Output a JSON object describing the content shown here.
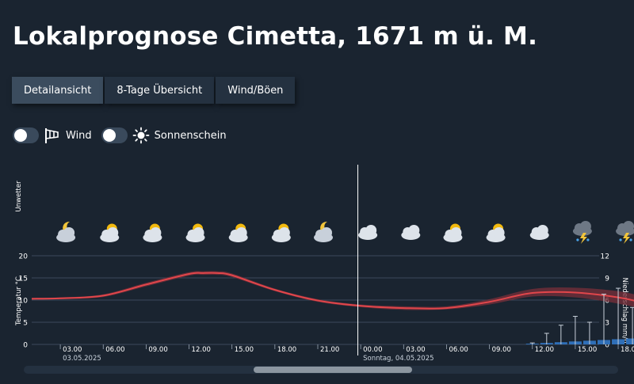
{
  "page": {
    "title": "Lokalprognose Cimetta, 1671 m ü. M."
  },
  "tabs": [
    {
      "label": "Detailansicht",
      "active": true
    },
    {
      "label": "8-Tage Übersicht",
      "active": false
    },
    {
      "label": "Wind/Böen",
      "active": false
    }
  ],
  "toggles": [
    {
      "label": "Wind",
      "icon": "windsock-icon",
      "on": false
    },
    {
      "label": "Sonnenschein",
      "icon": "sun-icon",
      "on": false
    }
  ],
  "colors": {
    "background": "#1a2430",
    "temperature_line": "#e0464b",
    "temperature_band": "#7a2f3a",
    "precip_bar": "#2f6fb8",
    "precip_whisker": "#c8d0da"
  },
  "chart_data": {
    "type": "line",
    "side_label": "Unwetter",
    "ylabel": "Temperatur °C",
    "ylabel_right": "Niederschlag mm/h",
    "ylim": [
      0,
      20
    ],
    "yticks": [
      0,
      5,
      10,
      15,
      20
    ],
    "ylim_right": [
      0,
      12
    ],
    "yticks_right": [
      0,
      3,
      6,
      9,
      12
    ],
    "xticks": [
      "03.00",
      "06.00",
      "09.00",
      "12.00",
      "15.00",
      "18.00",
      "21.00",
      "00.00",
      "03.00",
      "06.00",
      "09.00",
      "12.00",
      "15.00",
      "18.00",
      "21.00"
    ],
    "date_labels": [
      {
        "text": "03.05.2025",
        "at_hour": 3
      },
      {
        "text": "Sonntag, 04.05.2025",
        "at_hour": 24
      }
    ],
    "now_marker_hour": 23.8,
    "weather_icons": [
      {
        "hour": 3,
        "icon": "moon-cloud-icon"
      },
      {
        "hour": 6,
        "icon": "sun-cloud-icon"
      },
      {
        "hour": 9,
        "icon": "sun-cloud-icon"
      },
      {
        "hour": 12,
        "icon": "sun-cloud-icon"
      },
      {
        "hour": 15,
        "icon": "sun-cloud-icon"
      },
      {
        "hour": 18,
        "icon": "sun-cloud-icon"
      },
      {
        "hour": 21,
        "icon": "moon-cloud-icon"
      },
      {
        "hour": 24,
        "icon": "cloud-icon"
      },
      {
        "hour": 27,
        "icon": "cloud-icon"
      },
      {
        "hour": 30,
        "icon": "sun-cloud-icon"
      },
      {
        "hour": 33,
        "icon": "sun-cloud-icon"
      },
      {
        "hour": 36,
        "icon": "cloud-icon"
      },
      {
        "hour": 39,
        "icon": "thunder-rain-icon"
      },
      {
        "hour": 42,
        "icon": "thunder-rain-icon"
      }
    ],
    "series": [
      {
        "name": "Temperatur",
        "x": [
          1,
          3,
          6,
          9,
          12,
          13,
          14,
          15,
          18,
          21,
          24,
          27,
          30,
          33,
          36,
          39,
          42,
          44
        ],
        "values": [
          10.3,
          10.4,
          11.0,
          13.5,
          15.9,
          16.1,
          16.1,
          15.6,
          12.3,
          9.9,
          8.7,
          8.2,
          8.2,
          9.6,
          11.6,
          11.7,
          10.6,
          9.2
        ],
        "band_low": [
          10.1,
          10.2,
          10.7,
          13.1,
          15.5,
          15.7,
          15.7,
          15.2,
          12.0,
          9.6,
          8.4,
          7.8,
          7.9,
          9.0,
          10.8,
          10.6,
          9.2,
          7.8
        ],
        "band_high": [
          10.5,
          10.6,
          11.3,
          13.9,
          16.3,
          16.5,
          16.5,
          16.0,
          12.6,
          10.2,
          9.0,
          8.6,
          8.6,
          10.2,
          12.5,
          12.8,
          12.0,
          10.6
        ]
      }
    ],
    "precipitation": {
      "x": [
        33,
        34,
        35,
        36,
        37,
        38,
        39,
        40,
        41,
        42,
        43
      ],
      "values": [
        0,
        0,
        0,
        0.1,
        0.2,
        0.3,
        0.4,
        0.5,
        0.6,
        0.7,
        0.8
      ],
      "max": [
        0,
        0,
        0,
        0.2,
        1.5,
        2.6,
        3.8,
        3.0,
        6.8,
        7.6,
        5.0
      ]
    }
  },
  "scrollbar": {
    "position": 0.5
  }
}
